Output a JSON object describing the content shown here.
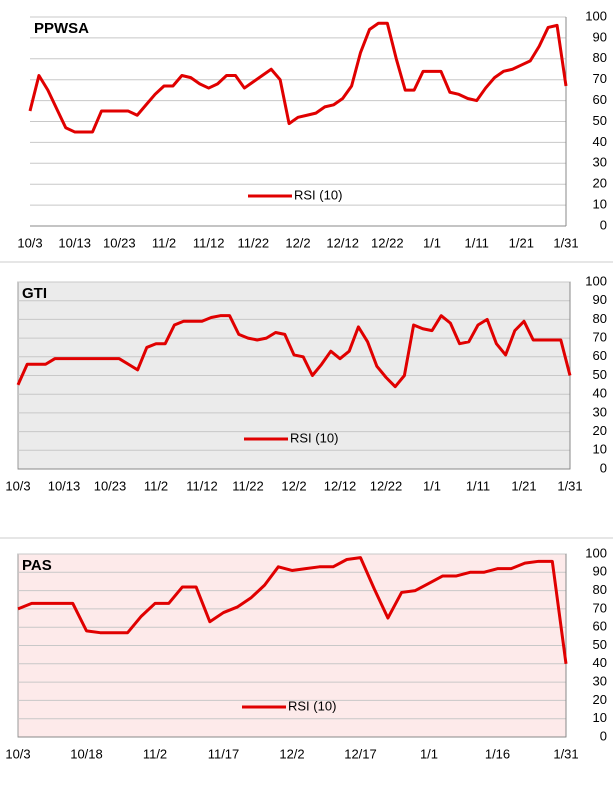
{
  "chart_data": [
    {
      "type": "line",
      "title": "PPWSA",
      "categories": [
        "10/3",
        null,
        null,
        null,
        null,
        "10/13",
        null,
        null,
        null,
        null,
        "10/23",
        null,
        null,
        null,
        null,
        "11/2",
        null,
        null,
        null,
        null,
        "11/12",
        null,
        null,
        null,
        null,
        "11/22",
        null,
        null,
        null,
        null,
        "12/2",
        null,
        null,
        null,
        null,
        "12/12",
        null,
        null,
        null,
        null,
        "12/22",
        null,
        null,
        null,
        null,
        "1/1",
        null,
        null,
        null,
        null,
        "1/11",
        null,
        null,
        null,
        null,
        "1/21",
        null,
        null,
        null,
        null,
        "1/31"
      ],
      "series": [
        {
          "name": "RSI (10)",
          "color": "#e00000",
          "values": [
            55,
            72,
            65,
            56,
            47,
            45,
            45,
            45,
            55,
            55,
            55,
            55,
            53,
            58,
            63,
            67,
            67,
            72,
            71,
            68,
            66,
            68,
            72,
            72,
            66,
            69,
            72,
            75,
            70,
            49,
            52,
            53,
            54,
            57,
            58,
            61,
            67,
            83,
            94,
            97,
            97,
            80,
            65,
            65,
            74,
            74,
            74,
            64,
            63,
            61,
            60,
            66,
            71,
            74,
            75,
            77,
            79,
            86,
            95,
            96,
            67
          ]
        }
      ],
      "ylim": [
        0,
        100
      ],
      "yticks": [
        0,
        10,
        20,
        30,
        40,
        50,
        60,
        70,
        80,
        90,
        100
      ],
      "grid": true,
      "legend": "bottom",
      "background": "#ffffff"
    },
    {
      "type": "line",
      "title": "GTI",
      "categories": [
        "10/3",
        null,
        null,
        null,
        null,
        "10/13",
        null,
        null,
        null,
        null,
        "10/23",
        null,
        null,
        null,
        null,
        "11/2",
        null,
        null,
        null,
        null,
        "11/12",
        null,
        null,
        null,
        null,
        "11/22",
        null,
        null,
        null,
        null,
        "12/2",
        null,
        null,
        null,
        null,
        "12/12",
        null,
        null,
        null,
        null,
        "12/22",
        null,
        null,
        null,
        null,
        "1/1",
        null,
        null,
        null,
        null,
        "1/11",
        null,
        null,
        null,
        null,
        "1/21",
        null,
        null,
        null,
        null,
        "1/31"
      ],
      "series": [
        {
          "name": "RSI (10)",
          "color": "#e00000",
          "values": [
            45,
            56,
            56,
            56,
            59,
            59,
            59,
            59,
            59,
            59,
            59,
            59,
            56,
            53,
            65,
            67,
            67,
            77,
            79,
            79,
            79,
            81,
            82,
            82,
            72,
            70,
            69,
            70,
            73,
            72,
            61,
            60,
            50,
            56,
            63,
            59,
            63,
            76,
            68,
            55,
            49,
            44,
            50,
            77,
            75,
            74,
            82,
            78,
            67,
            68,
            77,
            80,
            67,
            61,
            74,
            79,
            69,
            69,
            69,
            69,
            50
          ]
        }
      ],
      "ylim": [
        0,
        100
      ],
      "yticks": [
        0,
        10,
        20,
        30,
        40,
        50,
        60,
        70,
        80,
        90,
        100
      ],
      "grid": true,
      "legend": "bottom",
      "background": "#ebebeb"
    },
    {
      "type": "line",
      "title": "PAS",
      "categories": [
        "10/3",
        null,
        null,
        null,
        null,
        "10/18",
        null,
        null,
        null,
        null,
        "11/2",
        null,
        null,
        null,
        null,
        "11/17",
        null,
        null,
        null,
        null,
        "12/2",
        null,
        null,
        null,
        null,
        "12/17",
        null,
        null,
        null,
        null,
        "1/1",
        null,
        null,
        null,
        null,
        "1/16",
        null,
        null,
        null,
        null,
        "1/31"
      ],
      "series": [
        {
          "name": "RSI (10)",
          "color": "#e00000",
          "values": [
            70,
            73,
            73,
            73,
            73,
            58,
            57,
            57,
            57,
            66,
            73,
            73,
            82,
            82,
            63,
            68,
            71,
            76,
            83,
            93,
            91,
            92,
            93,
            93,
            97,
            98,
            81,
            65,
            79,
            80,
            84,
            88,
            88,
            90,
            90,
            92,
            92,
            95,
            96,
            96,
            40
          ]
        }
      ],
      "ylim": [
        0,
        100
      ],
      "yticks": [
        0,
        10,
        20,
        30,
        40,
        50,
        60,
        70,
        80,
        90,
        100
      ],
      "grid": true,
      "legend": "bottom",
      "background": "#fdeaea"
    }
  ]
}
